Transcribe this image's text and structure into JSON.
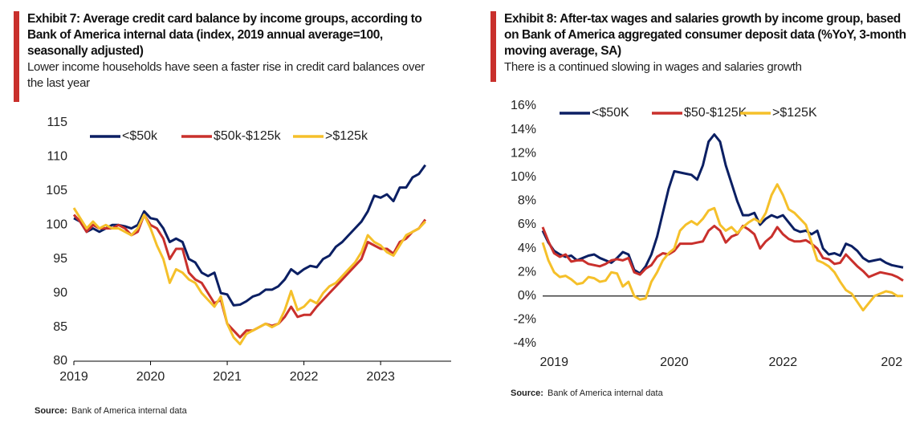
{
  "chart_data": [
    {
      "type": "line",
      "title": "Exhibit 7: Average credit card balance by income groups, according to Bank of America internal data (index, 2019 annual average=100, seasonally adjusted)",
      "subtitle": "Lower income households have seen a faster rise in credit card balances over the last year",
      "source_label": "Source:",
      "source": "Bank of America internal data",
      "x": [
        2019,
        2019.083,
        2019.167,
        2019.25,
        2019.333,
        2019.417,
        2019.5,
        2019.583,
        2019.667,
        2019.75,
        2019.833,
        2019.917,
        2020,
        2020.083,
        2020.167,
        2020.25,
        2020.333,
        2020.417,
        2020.5,
        2020.583,
        2020.667,
        2020.75,
        2020.833,
        2020.917,
        2021,
        2021.083,
        2021.167,
        2021.25,
        2021.333,
        2021.417,
        2021.5,
        2021.583,
        2021.667,
        2021.75,
        2021.833,
        2021.917,
        2022,
        2022.083,
        2022.167,
        2022.25,
        2022.333,
        2022.417,
        2022.5,
        2022.583,
        2022.667,
        2022.75,
        2022.833,
        2022.917,
        2023,
        2023.083,
        2023.167,
        2023.25,
        2023.333,
        2023.417,
        2023.5,
        2023.583
      ],
      "series": [
        {
          "name": "<$50k",
          "color": "#0b1f63",
          "values": [
            101,
            100.5,
            99,
            99.5,
            99,
            99.5,
            100,
            100,
            99.8,
            99.5,
            100,
            102,
            101,
            100.8,
            99.5,
            97.5,
            98,
            97.5,
            95,
            94.5,
            93,
            92.5,
            93,
            90,
            89.8,
            88.2,
            88.3,
            88.8,
            89.5,
            89.8,
            90.5,
            90.5,
            91,
            92,
            93.5,
            92.8,
            93.5,
            94,
            93.8,
            95,
            95.5,
            96.8,
            97.5,
            98.5,
            99.5,
            100.5,
            102,
            104.3,
            104,
            104.5,
            103.5,
            105.5,
            105.5,
            107,
            107.5,
            108.8
          ]
        },
        {
          "name": "$50k-$125k",
          "color": "#c9302c",
          "values": [
            101.5,
            100.5,
            99,
            100,
            99.5,
            99.5,
            99.5,
            100,
            99.5,
            98.5,
            99,
            101.5,
            100,
            99.5,
            98,
            95,
            96.5,
            96.5,
            93,
            92,
            91.5,
            90,
            88.5,
            89,
            85.5,
            84.5,
            83.5,
            84.5,
            84.5,
            85,
            85.5,
            85.2,
            85.5,
            86.5,
            88,
            86.5,
            86.8,
            86.8,
            88,
            89,
            90,
            91,
            92,
            93,
            94,
            95,
            97.5,
            97,
            96.5,
            96.5,
            95.8,
            97.5,
            98,
            99,
            99.5,
            100.8
          ]
        },
        {
          "name": ">$125k",
          "color": "#f5c02a",
          "values": [
            102.5,
            101,
            99.5,
            100.5,
            99.5,
            100,
            99.5,
            99.5,
            99,
            98.5,
            99.5,
            101.5,
            99.5,
            97,
            95,
            91.5,
            93.5,
            93,
            92,
            91.5,
            90,
            89,
            88,
            89.5,
            85.5,
            83.5,
            82.5,
            84,
            84.5,
            85,
            85.5,
            85,
            85.5,
            87.5,
            90.3,
            87.5,
            88,
            89,
            88.5,
            90,
            91,
            91.5,
            92.5,
            93.5,
            94.5,
            96,
            98.5,
            97.5,
            97,
            96,
            95.5,
            97,
            98.5,
            99,
            99.5,
            100.5
          ]
        }
      ],
      "xlim": [
        2019,
        2023.92
      ],
      "xticks": [
        2019,
        2020,
        2021,
        2022,
        2023
      ],
      "ylim": [
        80,
        115
      ],
      "yticks": [
        80,
        85,
        90,
        95,
        100,
        105,
        110,
        115
      ]
    },
    {
      "type": "line",
      "title": "Exhibit 8: After-tax wages and salaries growth by income group, based on Bank of America aggregated consumer deposit data (%YoY, 3-month moving average, SA)",
      "subtitle": "There is a continued slowing in wages and salaries growth",
      "source_label": "Source:",
      "source": "Bank of America internal data",
      "categories": [
        null,
        null,
        "2019",
        null,
        null,
        null,
        null,
        null,
        null,
        null,
        null,
        null,
        null,
        null,
        null,
        null,
        null,
        null,
        null,
        null,
        null,
        null,
        null,
        "2020",
        null,
        null,
        null,
        null,
        null,
        null,
        null,
        null,
        null,
        null,
        null,
        null,
        null,
        null,
        null,
        null,
        null,
        null,
        "2022",
        null,
        null,
        null,
        null,
        null,
        null,
        null,
        null,
        null,
        null,
        null,
        null,
        null,
        null,
        null,
        null,
        null,
        null,
        "202",
        null,
        null
      ],
      "series": [
        {
          "name": "<$50K",
          "color": "#0b1f63",
          "values": [
            5.5,
            4.5,
            3.8,
            3.5,
            3.3,
            3.4,
            3.0,
            3.2,
            3.4,
            3.5,
            3.2,
            3.0,
            2.8,
            3.2,
            3.7,
            3.5,
            2.2,
            1.9,
            2.5,
            3.5,
            5.0,
            7.0,
            9.0,
            10.5,
            10.4,
            10.3,
            10.2,
            9.8,
            11.0,
            13.0,
            13.6,
            13.0,
            11.0,
            9.5,
            8.0,
            6.8,
            6.8,
            7.0,
            6.0,
            6.5,
            6.8,
            6.6,
            6.8,
            6.2,
            5.6,
            5.4,
            5.5,
            5.2,
            5.5,
            4.0,
            3.5,
            3.6,
            3.4,
            4.4,
            4.2,
            3.8,
            3.2,
            2.9,
            3.0,
            3.1,
            2.8,
            2.6,
            2.5,
            2.4
          ]
        },
        {
          "name": "$50-$125K",
          "color": "#c9302c",
          "values": [
            5.8,
            4.6,
            3.6,
            3.3,
            3.5,
            2.9,
            3.0,
            3.0,
            2.7,
            2.6,
            2.5,
            2.7,
            3.0,
            3.1,
            3.0,
            3.2,
            2.0,
            1.8,
            2.3,
            2.6,
            3.3,
            3.6,
            3.5,
            3.8,
            4.4,
            4.4,
            4.4,
            4.5,
            4.6,
            5.5,
            5.9,
            5.5,
            4.5,
            5.0,
            5.2,
            5.9,
            5.6,
            5.2,
            4.0,
            4.6,
            5.0,
            5.8,
            5.2,
            4.8,
            4.6,
            4.6,
            4.7,
            4.4,
            4.0,
            3.2,
            3.1,
            2.7,
            2.8,
            3.5,
            3.0,
            2.5,
            2.1,
            1.6,
            1.8,
            2.0,
            1.9,
            1.8,
            1.6,
            1.3
          ]
        },
        {
          "name": ">$125K",
          "color": "#f5c02a",
          "values": [
            4.5,
            3.0,
            2.0,
            1.6,
            1.7,
            1.4,
            1.0,
            1.1,
            1.6,
            1.5,
            1.2,
            1.3,
            2.0,
            1.9,
            0.8,
            1.2,
            0.0,
            -0.3,
            -0.2,
            1.2,
            2.0,
            3.0,
            3.6,
            4.0,
            5.5,
            6.0,
            6.3,
            6.0,
            6.5,
            7.2,
            7.4,
            6.0,
            5.5,
            5.8,
            5.3,
            5.8,
            6.2,
            6.5,
            6.2,
            7.0,
            8.5,
            9.4,
            8.5,
            7.3,
            7.0,
            6.5,
            6.0,
            4.5,
            3.0,
            2.8,
            2.5,
            2.0,
            1.2,
            0.5,
            0.2,
            -0.5,
            -1.2,
            -0.6,
            0.0,
            0.2,
            0.4,
            0.3,
            0.0,
            0.0
          ]
        }
      ],
      "ylim": [
        -4,
        16
      ],
      "yticks": [
        {
          "value": -4,
          "label": "-4%"
        },
        {
          "value": -2,
          "label": "-2%"
        },
        {
          "value": 0,
          "label": "0%"
        },
        {
          "value": 2,
          "label": "2%"
        },
        {
          "value": 4,
          "label": "4%"
        },
        {
          "value": 6,
          "label": "6%"
        },
        {
          "value": 8,
          "label": "8%"
        },
        {
          "value": 10,
          "label": "10%"
        },
        {
          "value": 12,
          "label": "12%"
        },
        {
          "value": 14,
          "label": "14%"
        },
        {
          "value": 16,
          "label": "16%"
        }
      ]
    }
  ]
}
